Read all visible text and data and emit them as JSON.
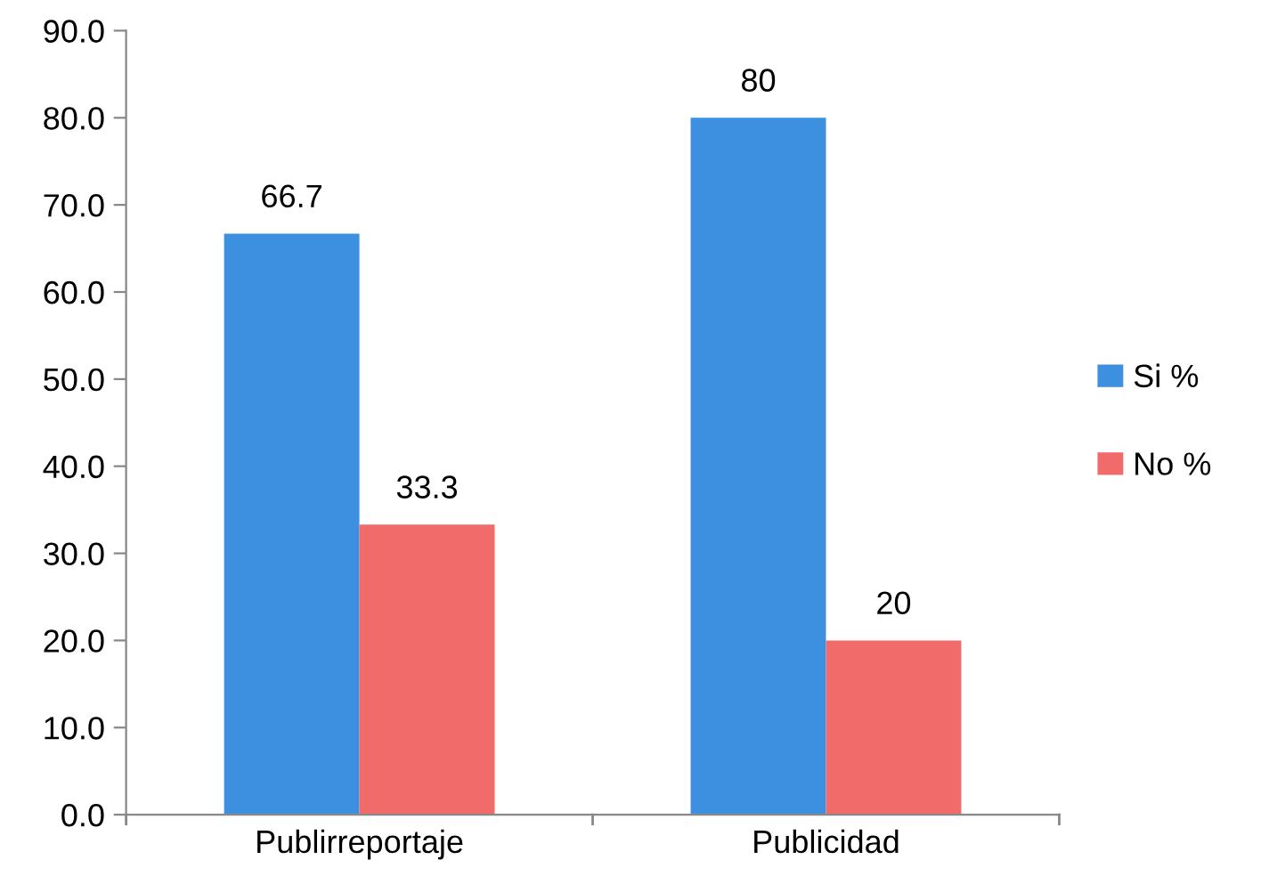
{
  "chart_data": {
    "type": "bar",
    "categories": [
      "Publirreportaje",
      "Publicidad"
    ],
    "series": [
      {
        "name": "Si %",
        "color": "#3d8fe0",
        "values": [
          66.7,
          80
        ]
      },
      {
        "name": "No %",
        "color": "#f26b6b",
        "values": [
          33.3,
          20
        ]
      }
    ],
    "ylim": [
      0,
      90
    ],
    "yticks": [
      {
        "value": 0,
        "label": "0.0"
      },
      {
        "value": 10,
        "label": "10.0"
      },
      {
        "value": 20,
        "label": "20.0"
      },
      {
        "value": 30,
        "label": "30.0"
      },
      {
        "value": 40,
        "label": "40.0"
      },
      {
        "value": 50,
        "label": "50.0"
      },
      {
        "value": 60,
        "label": "60.0"
      },
      {
        "value": 70,
        "label": "70.0"
      },
      {
        "value": 80,
        "label": "80.0"
      },
      {
        "value": 90,
        "label": "90.0"
      }
    ],
    "data_labels": true,
    "legend": "right",
    "grid": false
  }
}
